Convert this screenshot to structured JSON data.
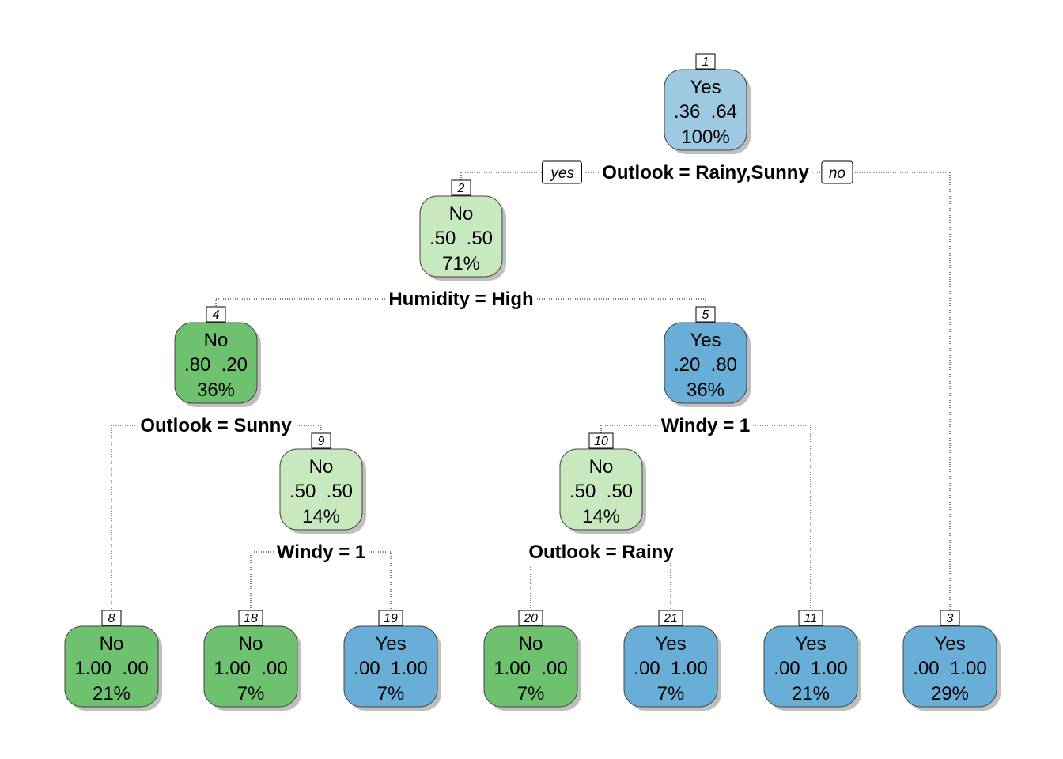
{
  "colors": {
    "no_dark": "#6DC16F",
    "no_light": "#C8E9C0",
    "yes_dark": "#68AED6",
    "yes_light": "#9ECAE1",
    "shadow": "#BFBFBF",
    "border": "#444444"
  },
  "branch_labels": {
    "left": "yes",
    "right": "no"
  },
  "nodes": [
    {
      "id": "1",
      "class": "Yes",
      "probs": ".36  .64",
      "pct": "100%",
      "fill": "yes_light",
      "split": "Outlook = Rainy,Sunny"
    },
    {
      "id": "2",
      "class": "No",
      "probs": ".50  .50",
      "pct": "71%",
      "fill": "no_light",
      "split": "Humidity = High"
    },
    {
      "id": "4",
      "class": "No",
      "probs": ".80  .20",
      "pct": "36%",
      "fill": "no_dark",
      "split": "Outlook = Sunny"
    },
    {
      "id": "5",
      "class": "Yes",
      "probs": ".20  .80",
      "pct": "36%",
      "fill": "yes_dark",
      "split": "Windy = 1"
    },
    {
      "id": "9",
      "class": "No",
      "probs": ".50  .50",
      "pct": "14%",
      "fill": "no_light",
      "split": "Windy = 1"
    },
    {
      "id": "10",
      "class": "No",
      "probs": ".50  .50",
      "pct": "14%",
      "fill": "no_light",
      "split": "Outlook = Rainy"
    },
    {
      "id": "8",
      "class": "No",
      "probs": "1.00  .00",
      "pct": "21%",
      "fill": "no_dark",
      "split": ""
    },
    {
      "id": "18",
      "class": "No",
      "probs": "1.00  .00",
      "pct": "7%",
      "fill": "no_dark",
      "split": ""
    },
    {
      "id": "19",
      "class": "Yes",
      "probs": ".00  1.00",
      "pct": "7%",
      "fill": "yes_dark",
      "split": ""
    },
    {
      "id": "20",
      "class": "No",
      "probs": "1.00  .00",
      "pct": "7%",
      "fill": "no_dark",
      "split": ""
    },
    {
      "id": "21",
      "class": "Yes",
      "probs": ".00  1.00",
      "pct": "7%",
      "fill": "yes_dark",
      "split": ""
    },
    {
      "id": "11",
      "class": "Yes",
      "probs": ".00  1.00",
      "pct": "21%",
      "fill": "yes_dark",
      "split": ""
    },
    {
      "id": "3",
      "class": "Yes",
      "probs": ".00  1.00",
      "pct": "29%",
      "fill": "yes_dark",
      "split": ""
    }
  ]
}
